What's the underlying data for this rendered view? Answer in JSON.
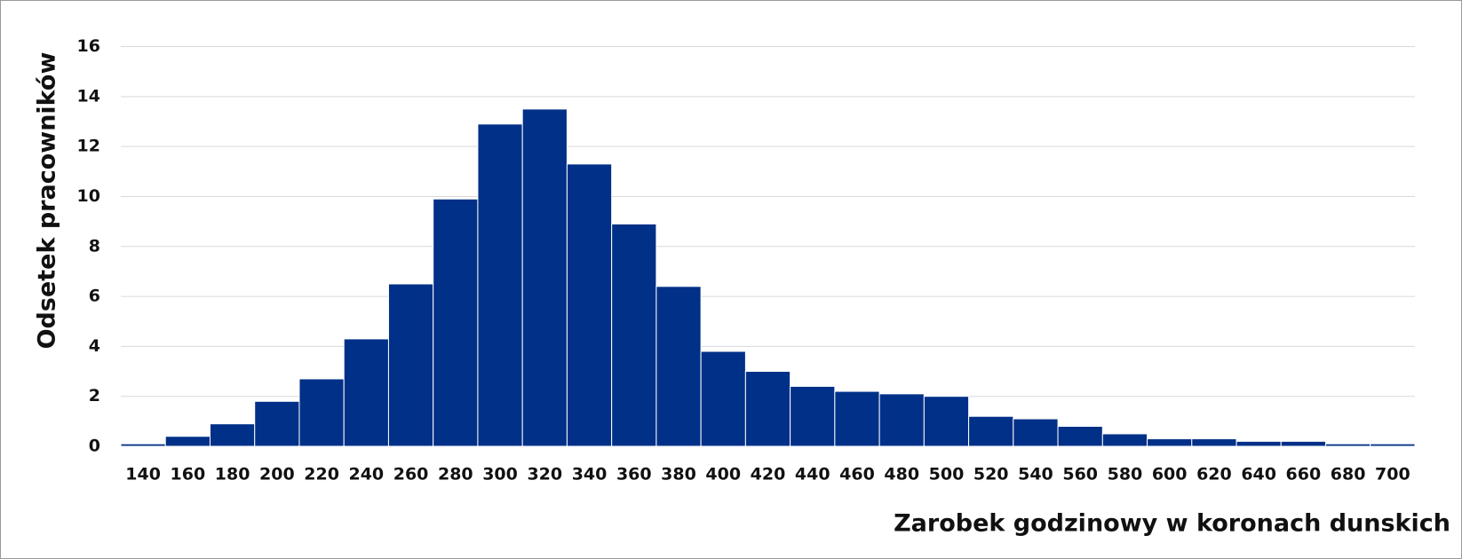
{
  "chart_data": {
    "type": "bar",
    "x_label": "Zarobek godzinowy w koronach dunskich",
    "y_label": "Odsetek pracowników",
    "categories": [
      "140",
      "160",
      "180",
      "200",
      "220",
      "240",
      "260",
      "280",
      "300",
      "320",
      "340",
      "360",
      "380",
      "400",
      "420",
      "440",
      "460",
      "480",
      "500",
      "520",
      "540",
      "560",
      "580",
      "600",
      "620",
      "640",
      "660",
      "680",
      "700"
    ],
    "values": [
      0.1,
      0.4,
      0.9,
      1.8,
      2.7,
      4.3,
      6.5,
      9.9,
      12.9,
      13.5,
      11.3,
      8.9,
      6.4,
      3.8,
      3.0,
      2.4,
      2.2,
      2.1,
      2.0,
      1.2,
      1.1,
      0.8,
      0.5,
      0.3,
      0.3,
      0.2,
      0.2,
      0.1,
      0.1
    ],
    "color": "#003087",
    "ylim": [
      0,
      16
    ],
    "yticks": [
      0,
      2,
      4,
      6,
      8,
      10,
      12,
      14,
      16
    ],
    "grid": true
  }
}
